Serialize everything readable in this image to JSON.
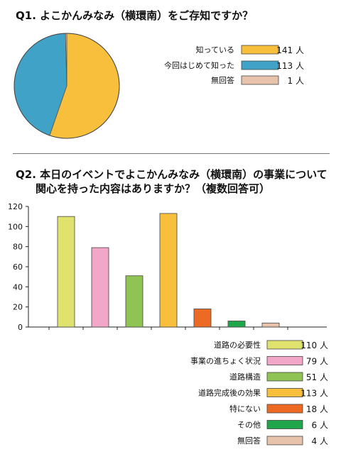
{
  "q1": {
    "title": "Q1. よこかんみなみ（横環南）をご存知ですか？"
  },
  "q2": {
    "title": "Q2. 本日のイベントでよこかんみなみ（横環南）の事業について",
    "subtitle": "関心を持った内容はありますか？（複数回答可）"
  },
  "unit": "人",
  "chart_data": [
    {
      "type": "pie",
      "title": "Q1. よこかんみなみ（横環南）をご存知ですか？",
      "categories": [
        "知っている",
        "今回はじめて知った",
        "無回答"
      ],
      "values": [
        141,
        113,
        1
      ],
      "colors": [
        "#f8bf3d",
        "#3fa2c6",
        "#e6c3aa"
      ],
      "legend": "right"
    },
    {
      "type": "bar",
      "title": "Q2. 本日のイベントでよこかんみなみ（横環南）の事業について 関心を持った内容はありますか？（複数回答可）",
      "categories": [
        "道路の必要性",
        "事業の進ちょく状況",
        "道路構造",
        "道路完成後の効果",
        "特にない",
        "その他",
        "無回答"
      ],
      "values": [
        110,
        79,
        51,
        113,
        18,
        6,
        4
      ],
      "colors": [
        "#dfe36e",
        "#f2a6c8",
        "#8fc455",
        "#f8bf3d",
        "#ec6a23",
        "#1fa64a",
        "#e6c3aa"
      ],
      "ylim": [
        0,
        120
      ],
      "yticks": [
        0,
        20,
        40,
        60,
        80,
        100,
        120
      ],
      "legend": "bottom-right",
      "grid": false
    }
  ]
}
